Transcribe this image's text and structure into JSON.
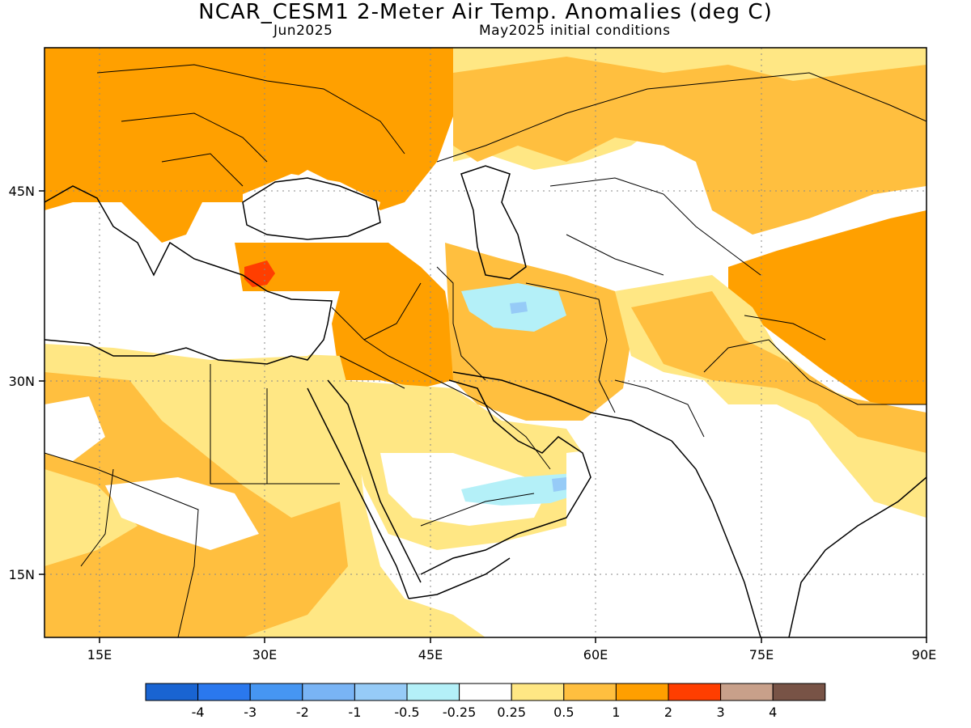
{
  "header": {
    "title": "NCAR_CESM1 2-Meter Air Temp. Anomalies (deg C)",
    "forecast_month": "Jun2025",
    "init_conditions": "May2025 initial conditions"
  },
  "map": {
    "lon_range": [
      10,
      90
    ],
    "lat_range": [
      9,
      56
    ],
    "lon_ticks": [
      {
        "value": 15,
        "label": "15E"
      },
      {
        "value": 30,
        "label": "30E"
      },
      {
        "value": 45,
        "label": "45E"
      },
      {
        "value": 60,
        "label": "60E"
      },
      {
        "value": 75,
        "label": "75E"
      },
      {
        "value": 90,
        "label": "90E"
      }
    ],
    "lat_ticks": [
      {
        "value": 45,
        "label": "45N"
      },
      {
        "value": 30,
        "label": "30N"
      },
      {
        "value": 15,
        "label": "15N"
      }
    ]
  },
  "colorbar": {
    "colors": [
      "#1964d2",
      "#2a78ee",
      "#4696f2",
      "#79b4f5",
      "#96cbf7",
      "#b4f0f8",
      "#ffffff",
      "#ffe784",
      "#ffbf3f",
      "#ff9f00",
      "#ff3e00",
      "#c8a08a",
      "#785346"
    ],
    "labels": [
      "-4",
      "-3",
      "-2",
      "-1",
      "-0.5",
      "-0.25",
      "0.25",
      "0.5",
      "1",
      "2",
      "3",
      "4"
    ]
  }
}
